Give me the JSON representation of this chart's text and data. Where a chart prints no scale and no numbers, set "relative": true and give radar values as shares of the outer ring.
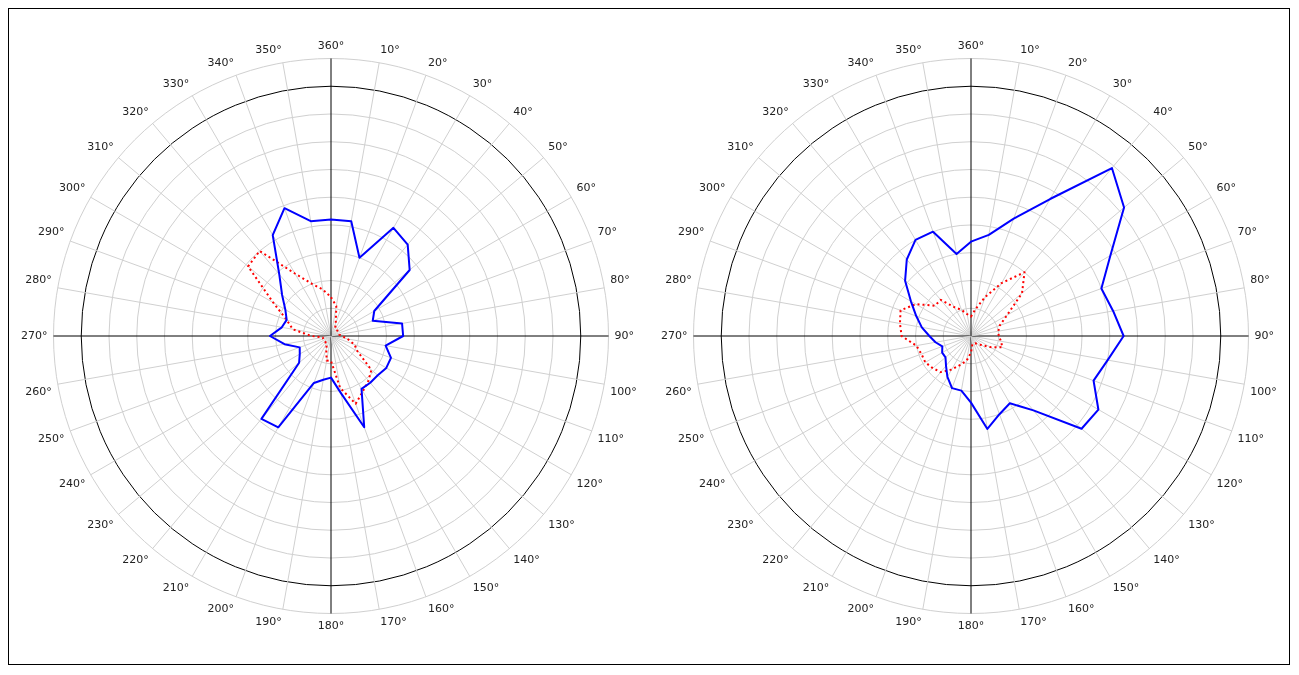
{
  "chart_data": [
    {
      "type": "radar",
      "relative": true,
      "grid": true,
      "marker": "none",
      "categories": [
        "360°",
        "10°",
        "20°",
        "30°",
        "40°",
        "50°",
        "60°",
        "70°",
        "80°",
        "90°",
        "100°",
        "110°",
        "120°",
        "130°",
        "140°",
        "150°",
        "160°",
        "170°",
        "180°",
        "190°",
        "200°",
        "210°",
        "220°",
        "230°",
        "240°",
        "250°",
        "260°",
        "270°",
        "280°",
        "290°",
        "300°",
        "310°",
        "320°",
        "330°",
        "340°",
        "350°"
      ],
      "series": [
        {
          "color": "#0000ff",
          "line_style": "solid",
          "values": [
            0.42,
            0.42,
            0.3,
            0.45,
            0.43,
            0.37,
            0.18,
            0.16,
            0.26,
            0.26,
            0.2,
            0.23,
            0.23,
            0.22,
            0.22,
            0.22,
            0.35,
            0.21,
            0.15,
            0.16,
            0.18,
            0.38,
            0.39,
            0.15,
            0.13,
            0.12,
            0.17,
            0.22,
            0.18,
            0.17,
            0.19,
            0.23,
            0.29,
            0.42,
            0.49,
            0.42
          ]
        },
        {
          "color": "#ff0000",
          "line_style": "dotted",
          "values": [
            0.14,
            0.11,
            0.05,
            0.03,
            0.03,
            0.03,
            0.03,
            0.03,
            0.03,
            0.04,
            0.06,
            0.09,
            0.11,
            0.19,
            0.21,
            0.23,
            0.26,
            0.19,
            0.09,
            0.09,
            0.05,
            0.03,
            0.03,
            0.03,
            0.03,
            0.03,
            0.03,
            0.07,
            0.14,
            0.17,
            0.24,
            0.39,
            0.4,
            0.26,
            0.2,
            0.17
          ]
        }
      ]
    },
    {
      "type": "radar",
      "relative": true,
      "grid": true,
      "marker": "none",
      "categories": [
        "360°",
        "10°",
        "20°",
        "30°",
        "40°",
        "50°",
        "60°",
        "70°",
        "80°",
        "90°",
        "100°",
        "110°",
        "120°",
        "130°",
        "140°",
        "150°",
        "160°",
        "170°",
        "180°",
        "190°",
        "200°",
        "210°",
        "220°",
        "230°",
        "240°",
        "250°",
        "260°",
        "270°",
        "280°",
        "290°",
        "300°",
        "310°",
        "320°",
        "330°",
        "340°",
        "350°"
      ],
      "series": [
        {
          "color": "#0000ff",
          "line_style": "solid",
          "values": [
            0.34,
            0.37,
            0.45,
            0.57,
            0.79,
            0.72,
            0.58,
            0.5,
            0.52,
            0.55,
            0.5,
            0.47,
            0.53,
            0.52,
            0.35,
            0.28,
            0.3,
            0.34,
            0.24,
            0.2,
            0.2,
            0.17,
            0.14,
            0.12,
            0.12,
            0.11,
            0.13,
            0.15,
            0.18,
            0.21,
            0.25,
            0.31,
            0.36,
            0.4,
            0.4,
            0.3
          ]
        },
        {
          "color": "#ff0000",
          "line_style": "dotted",
          "values": [
            0.07,
            0.1,
            0.15,
            0.22,
            0.3,
            0.24,
            0.15,
            0.11,
            0.1,
            0.1,
            0.11,
            0.12,
            0.08,
            0.05,
            0.04,
            0.03,
            0.03,
            0.03,
            0.06,
            0.09,
            0.11,
            0.14,
            0.17,
            0.18,
            0.19,
            0.19,
            0.2,
            0.25,
            0.26,
            0.27,
            0.23,
            0.17,
            0.17,
            0.12,
            0.1,
            0.08
          ]
        }
      ]
    }
  ]
}
